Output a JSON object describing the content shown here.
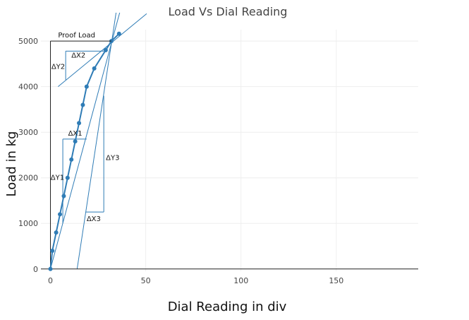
{
  "chart_data": {
    "type": "line",
    "title": "Load Vs Dial Reading",
    "xlabel": "Dial Reading in div",
    "ylabel": "Load in kg",
    "xlim": [
      -5,
      193
    ],
    "ylim": [
      -50,
      5250
    ],
    "x_ticks": [
      0,
      50,
      100,
      150
    ],
    "y_ticks": [
      0,
      1000,
      2000,
      3000,
      4000,
      5000
    ],
    "grid": true,
    "colors": {
      "series": "#2f7cb6",
      "guides": "#2f7cb6",
      "axis": "#222222",
      "grid": "#eeeeee"
    },
    "series": [
      {
        "x": [
          0,
          1,
          3,
          5,
          7,
          9,
          11,
          13,
          15,
          17,
          19,
          23,
          29,
          32,
          36
        ],
        "y": [
          0,
          400,
          800,
          1200,
          1600,
          2000,
          2400,
          2800,
          3200,
          3600,
          4000,
          4400,
          4800,
          5000,
          5160
        ]
      }
    ],
    "tangent_lines": [
      {
        "x": [
          4,
          50.5
        ],
        "y": [
          4000,
          5600
        ]
      },
      {
        "x": [
          0,
          38
        ],
        "y": [
          0,
          5880
        ]
      },
      {
        "x": [
          14,
          36
        ],
        "y": [
          0,
          6050
        ]
      }
    ],
    "annotations": {
      "proof_load": {
        "label": "Proof Load",
        "y": 5000,
        "x_from": 0,
        "x_to": 32
      },
      "dx2": {
        "label": "ΔX2",
        "x_from": 8,
        "x_to": 28,
        "y": 4780
      },
      "dy2": {
        "label": "ΔY2",
        "x": 8,
        "y_from": 4150,
        "y_to": 4780
      },
      "dx1": {
        "label": "ΔX1",
        "x_from": 6.5,
        "x_to": 19,
        "y": 2850
      },
      "dy1": {
        "label": "ΔY1",
        "x": 6.5,
        "y_from": 1000,
        "y_to": 2850
      },
      "dx3": {
        "label": "ΔX3",
        "x_from": 18.5,
        "x_to": 28,
        "y": 1250
      },
      "dy3": {
        "label": "ΔY3",
        "x": 28,
        "y_from": 1250,
        "y_to": 3800
      }
    }
  }
}
